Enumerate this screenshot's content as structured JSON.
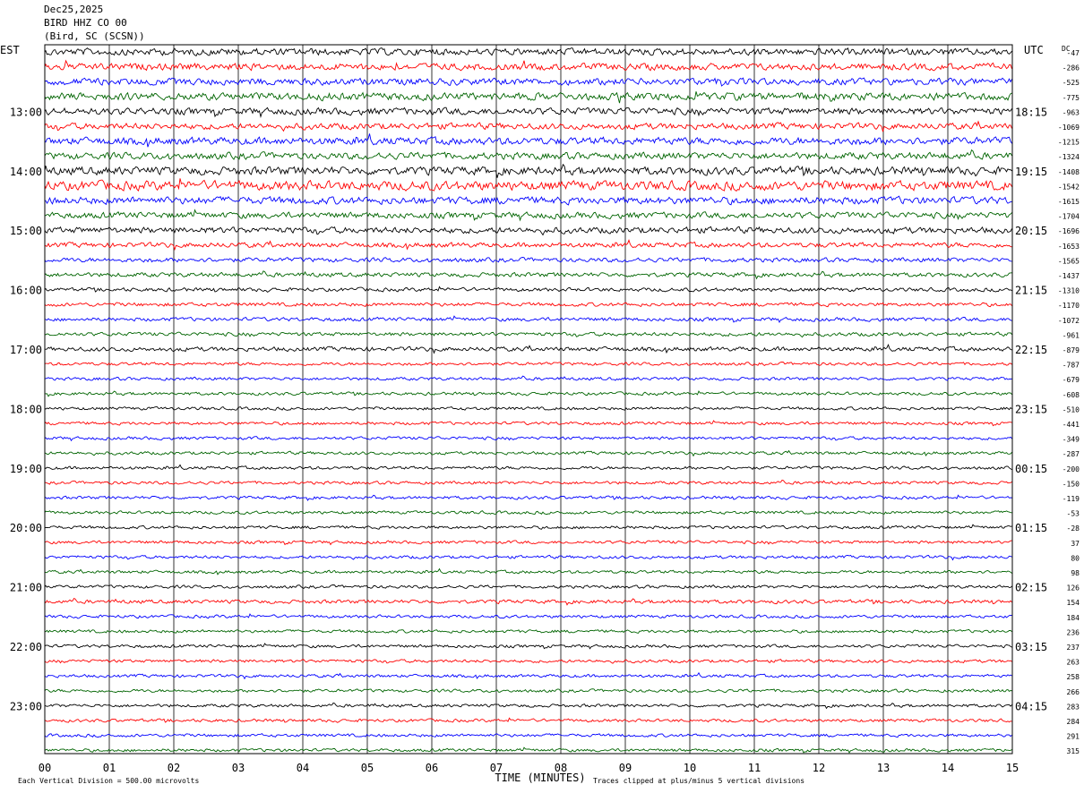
{
  "header": {
    "date": "Dec25,2025",
    "station": "BIRD HHZ CO 00",
    "location": "(Bird, SC (SCSN))"
  },
  "chart_data": {
    "type": "line",
    "title": "",
    "xlabel": "TIME (MINUTES)",
    "left_axis_title": "EST",
    "right_axis_title": "UTC",
    "dc_label": "DC",
    "x_ticks": [
      "00",
      "01",
      "02",
      "03",
      "04",
      "05",
      "06",
      "07",
      "08",
      "09",
      "10",
      "11",
      "12",
      "13",
      "14",
      "15"
    ],
    "xlim": [
      0,
      15
    ],
    "left_hour_labels": [
      "13:00",
      "14:00",
      "15:00",
      "16:00",
      "17:00",
      "18:00",
      "19:00",
      "20:00",
      "21:00",
      "22:00",
      "23:00"
    ],
    "right_hour_labels": [
      "18:15",
      "19:15",
      "20:15",
      "21:15",
      "22:15",
      "23:15",
      "00:15",
      "01:15",
      "02:15",
      "03:15",
      "04:15"
    ],
    "dc_offsets": [
      "-47",
      "-286",
      "-525",
      "-775",
      "-963",
      "-1069",
      "-1215",
      "-1324",
      "-1408",
      "-1542",
      "-1615",
      "-1704",
      "-1696",
      "-1653",
      "-1565",
      "-1437",
      "-1310",
      "-1170",
      "-1072",
      "-961",
      "-879",
      "-787",
      "-679",
      "-608",
      "-510",
      "-441",
      "-349",
      "-287",
      "-200",
      "-150",
      "-119",
      "-53",
      "-28",
      "37",
      "80",
      "98",
      "126",
      "154",
      "184",
      "236",
      "237",
      "263",
      "258",
      "266",
      "283",
      "284",
      "291",
      "315"
    ],
    "trace_colors": [
      "#000000",
      "#ff0000",
      "#0000ff",
      "#006400"
    ],
    "noise_level": [
      0.55,
      0.55,
      0.55,
      0.6,
      0.55,
      0.5,
      0.6,
      0.55,
      0.65,
      0.75,
      0.6,
      0.5,
      0.5,
      0.4,
      0.35,
      0.35,
      0.3,
      0.3,
      0.3,
      0.3,
      0.35,
      0.25,
      0.25,
      0.25,
      0.25,
      0.25,
      0.25,
      0.25,
      0.25,
      0.25,
      0.25,
      0.25,
      0.25,
      0.25,
      0.25,
      0.25,
      0.25,
      0.3,
      0.25,
      0.25,
      0.25,
      0.25,
      0.25,
      0.25,
      0.25,
      0.25,
      0.25,
      0.25
    ],
    "footer_left": "Each Vertical Division =  500.00 microvolts",
    "footer_right": "Traces clipped at plus/minus 5 vertical divisions"
  }
}
